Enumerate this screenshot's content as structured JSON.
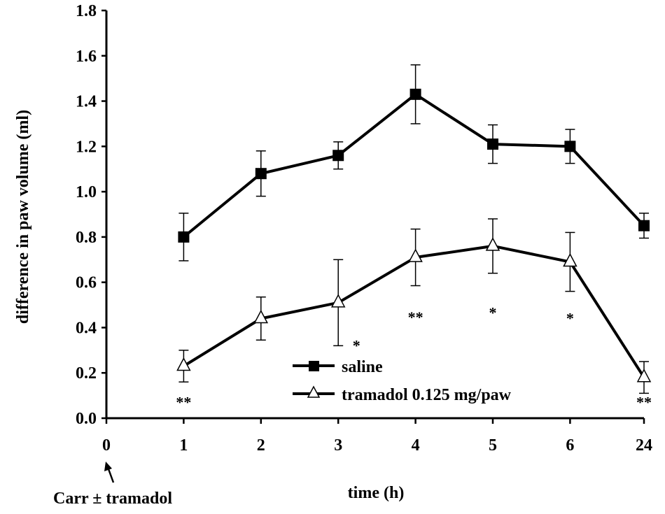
{
  "chart_data": {
    "type": "line",
    "title": "",
    "xlabel": "time (h)",
    "ylabel": "difference  in paw volume (ml)",
    "ylim": [
      0,
      1.8
    ],
    "y_ticks": [
      "0.0",
      "0.2",
      "0.4",
      "0.6",
      "0.8",
      "1.0",
      "1.2",
      "1.4",
      "1.6",
      "1.8"
    ],
    "categories": [
      "0",
      "1",
      "2",
      "3",
      "4",
      "5",
      "6",
      "24"
    ],
    "grid": false,
    "legend_position": "bottom-right",
    "series": [
      {
        "name": "saline",
        "marker": "filled-square",
        "x": [
          "1",
          "2",
          "3",
          "4",
          "5",
          "6",
          "24"
        ],
        "values": [
          0.8,
          1.08,
          1.16,
          1.43,
          1.21,
          1.2,
          0.85
        ],
        "errors": [
          0.105,
          0.1,
          0.06,
          0.13,
          0.085,
          0.075,
          0.055
        ]
      },
      {
        "name": "tramadol 0.125 mg/paw",
        "marker": "open-triangle",
        "x": [
          "1",
          "2",
          "3",
          "4",
          "5",
          "6",
          "24"
        ],
        "values": [
          0.23,
          0.44,
          0.51,
          0.71,
          0.76,
          0.69,
          0.18
        ],
        "errors": [
          0.07,
          0.095,
          0.19,
          0.125,
          0.12,
          0.13,
          0.07
        ]
      }
    ],
    "significance": [
      {
        "x": "1",
        "y": 0.085,
        "label": "**"
      },
      {
        "x": "3",
        "y": 0.335,
        "label": "*"
      },
      {
        "x": "4",
        "y": 0.46,
        "label": "**"
      },
      {
        "x": "5",
        "y": 0.48,
        "label": "*"
      },
      {
        "x": "6",
        "y": 0.455,
        "label": "*"
      },
      {
        "x": "24",
        "y": 0.085,
        "label": "**"
      }
    ],
    "annotation": "Carr ± tramadol"
  }
}
